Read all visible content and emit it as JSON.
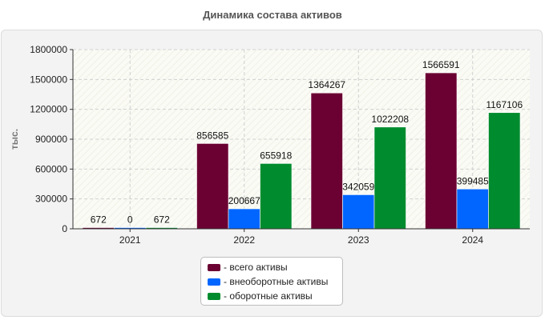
{
  "chart_data": {
    "type": "bar",
    "title": "Динамика состава активов",
    "ylabel": "тыс.",
    "xlabel": "",
    "categories": [
      "2021",
      "2022",
      "2023",
      "2024"
    ],
    "ylim": [
      0,
      1800000
    ],
    "yticks": [
      "0",
      "300000",
      "600000",
      "900000",
      "1200000",
      "1500000",
      "1800000"
    ],
    "grid": true,
    "legend_position": "bottom",
    "series": [
      {
        "name": "всего активы",
        "color": "#6b0032",
        "values": [
          672,
          856585,
          1364267,
          1566591
        ],
        "labels": [
          "672",
          "856585",
          "1364267",
          "1566591"
        ]
      },
      {
        "name": "внеоборотные активы",
        "color": "#0066ff",
        "values": [
          0,
          200667,
          342059,
          399485
        ],
        "labels": [
          "0",
          "200667",
          "342059",
          "399485"
        ]
      },
      {
        "name": "оборотные активы",
        "color": "#008c2e",
        "values": [
          672,
          655918,
          1022208,
          1167106
        ],
        "labels": [
          "672",
          "655918",
          "1022208",
          "1167106"
        ]
      }
    ]
  },
  "legend": {
    "items": [
      {
        "label": "- всего активы"
      },
      {
        "label": "- внеоборотные активы"
      },
      {
        "label": "- оборотные активы"
      }
    ]
  }
}
